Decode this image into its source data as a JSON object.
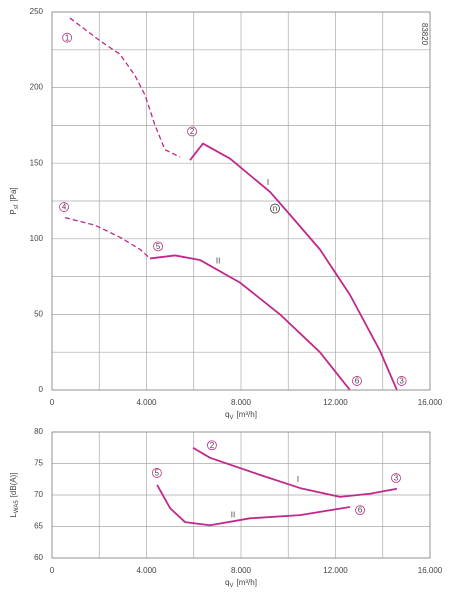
{
  "chart_data": [
    {
      "type": "line",
      "color": "#c0288a",
      "grid": true,
      "ylabel": {
        "main": "P",
        "sub": "sf",
        "unit": "[Pa]"
      },
      "xlabel": {
        "main": "q",
        "sub": "V",
        "unit": "[m³/h]"
      },
      "code": "83820",
      "xlim": [
        0,
        16000
      ],
      "ylim": [
        0,
        250
      ],
      "xticks": [
        0,
        {
          "value": 4000,
          "label": "4.000"
        },
        {
          "value": 8000,
          "label": "8.000"
        },
        {
          "value": 12000,
          "label": "12.000"
        },
        {
          "value": 16000,
          "label": "16.000"
        }
      ],
      "yticks": [
        0,
        50,
        100,
        150,
        200,
        250
      ],
      "xgrid": [
        2000,
        6000,
        10000,
        14000
      ],
      "ygrid": [
        25,
        75,
        125,
        175,
        225
      ],
      "series": [
        {
          "dashed": true,
          "x": [
            760,
            2030,
            2880,
            3510,
            3940,
            4360,
            4780,
            5420
          ],
          "values": [
            246,
            231,
            222,
            208,
            195,
            175,
            159,
            154
          ]
        },
        {
          "dashed": false,
          "x": [
            5840,
            6390,
            7540,
            9230,
            10070,
            11340,
            12610,
            13880,
            14600
          ],
          "values": [
            152,
            163,
            153,
            131,
            116,
            93,
            63,
            26,
            0
          ]
        },
        {
          "dashed": true,
          "x": [
            550,
            1820,
            2880,
            3730,
            4150
          ],
          "values": [
            114,
            109,
            101,
            93,
            87
          ]
        },
        {
          "dashed": false,
          "x": [
            4150,
            5210,
            6260,
            7960,
            9650,
            11340,
            12610
          ],
          "values": [
            87,
            89,
            86,
            71,
            50,
            25,
            0
          ]
        }
      ],
      "annotations": [
        {
          "text": "1",
          "circled": true,
          "x": 640,
          "y": 233
        },
        {
          "text": "2",
          "circled": true,
          "x": 5930,
          "y": 171
        },
        {
          "text": "3",
          "circled": true,
          "x": 14800,
          "y": 6
        },
        {
          "text": "4",
          "circled": true,
          "x": 510,
          "y": 121
        },
        {
          "text": "5",
          "circled": true,
          "x": 4490,
          "y": 95
        },
        {
          "text": "6",
          "circled": true,
          "x": 12910,
          "y": 6
        },
        {
          "text": "n",
          "circled": true,
          "x": 9440,
          "y": 120
        },
        {
          "text": "I",
          "circled": false,
          "x": 9140,
          "y": 137
        },
        {
          "text": "II",
          "circled": false,
          "x": 7030,
          "y": 85
        }
      ]
    },
    {
      "type": "line",
      "color": "#c0288a",
      "grid": true,
      "ylabel": {
        "main": "L",
        "sub": "WA5",
        "unit": "[dB(A)]"
      },
      "xlabel": {
        "main": "q",
        "sub": "V",
        "unit": "[m³/h]"
      },
      "xlim": [
        0,
        16000
      ],
      "ylim": [
        60,
        80
      ],
      "xticks": [
        0,
        {
          "value": 4000,
          "label": "4.000"
        },
        {
          "value": 8000,
          "label": "8.000"
        },
        {
          "value": 12000,
          "label": "12.000"
        },
        {
          "value": 16000,
          "label": "16.000"
        }
      ],
      "yticks": [
        60,
        65,
        70,
        75,
        80
      ],
      "xgrid": [
        2000,
        6000,
        10000,
        14000
      ],
      "ygrid": [],
      "series": [
        {
          "dashed": false,
          "x": [
            5970,
            6690,
            8800,
            10500,
            12190,
            13460,
            14600
          ],
          "values": [
            77.5,
            75.9,
            73.2,
            71.1,
            69.7,
            70.2,
            71.0
          ]
        },
        {
          "dashed": false,
          "x": [
            4450,
            5000,
            5630,
            6690,
            8380,
            10500,
            12610
          ],
          "values": [
            71.6,
            67.9,
            65.7,
            65.2,
            66.3,
            66.8,
            68.1
          ]
        }
      ],
      "annotations": [
        {
          "text": "2",
          "circled": true,
          "x": 6770,
          "y": 77.9
        },
        {
          "text": "3",
          "circled": true,
          "x": 14560,
          "y": 72.7
        },
        {
          "text": "5",
          "circled": true,
          "x": 4440,
          "y": 73.5
        },
        {
          "text": "6",
          "circled": true,
          "x": 13040,
          "y": 67.6
        },
        {
          "text": "I",
          "circled": false,
          "x": 10410,
          "y": 72.4
        },
        {
          "text": "II",
          "circled": false,
          "x": 7660,
          "y": 66.8
        }
      ]
    }
  ]
}
